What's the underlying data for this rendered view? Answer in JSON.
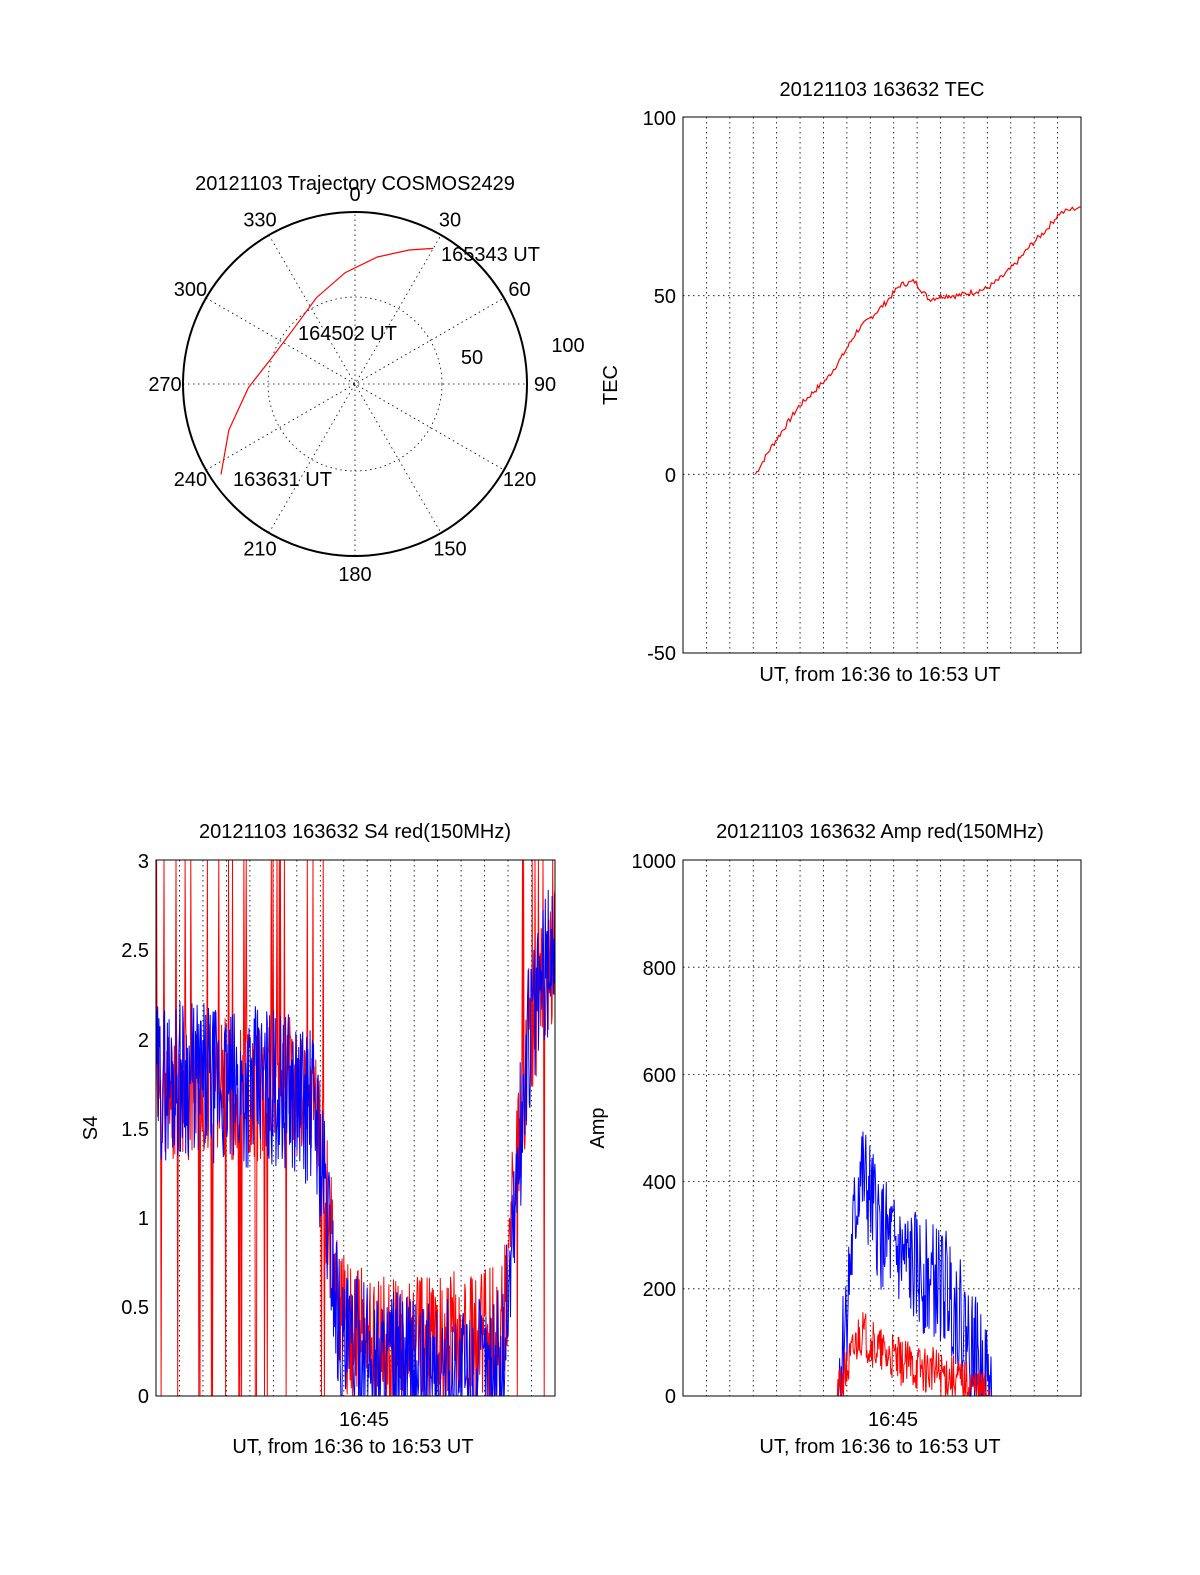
{
  "chart_data": [
    {
      "type": "polar",
      "title": "20121103 Trajectory COSMOS2429",
      "angle_labels": [
        "0",
        "30",
        "60",
        "90",
        "120",
        "150",
        "180",
        "210",
        "240",
        "270",
        "300",
        "330"
      ],
      "ring_labels": [
        "50",
        "100"
      ],
      "series": [
        {
          "color": "#ff0000",
          "points": [
            {
              "az": 236,
              "zen": 94
            },
            {
              "az": 250,
              "zen": 78
            },
            {
              "az": 268,
              "zen": 62
            },
            {
              "az": 290,
              "zen": 50
            },
            {
              "az": 312,
              "zen": 48
            },
            {
              "az": 336,
              "zen": 55
            },
            {
              "az": 355,
              "zen": 65
            },
            {
              "az": 10,
              "zen": 75
            },
            {
              "az": 22,
              "zen": 84
            },
            {
              "az": 30,
              "zen": 91
            }
          ]
        }
      ],
      "annotations": [
        {
          "text": "165343 UT",
          "az": 30,
          "zen": 91
        },
        {
          "text": "164502 UT",
          "az": 348,
          "zen": 26
        },
        {
          "text": "163631 UT",
          "az": 224,
          "zen": 76
        }
      ]
    },
    {
      "type": "line",
      "title": "20121103 163632 TEC",
      "xlabel": "UT, from 16:36 to 16:53 UT",
      "ylabel": "TEC",
      "ylim": [
        -50,
        100
      ],
      "yticks": [
        "100",
        "50",
        "0",
        "-50"
      ],
      "xlim": [
        16.5,
        17.05
      ],
      "series": [
        {
          "color": "#ff0000",
          "x": [
            16.6,
            16.62,
            16.64,
            16.66,
            16.68,
            16.7,
            16.72,
            16.74,
            16.76,
            16.78,
            16.8,
            16.82,
            16.84,
            16.86,
            16.88,
            16.9,
            16.92,
            16.94,
            16.96,
            16.98,
            17.0,
            17.02,
            17.05
          ],
          "y": [
            0,
            7,
            13,
            19,
            23,
            27,
            33,
            40,
            44,
            48,
            53,
            54,
            49,
            50,
            50,
            51,
            52,
            55,
            59,
            64,
            68,
            73,
            75
          ]
        }
      ]
    },
    {
      "type": "line",
      "title": "20121103 163632 S4 red(150MHz)",
      "xlabel": "UT, from 16:36 to 16:53 UT",
      "ylabel": "S4",
      "ylim": [
        0,
        3
      ],
      "yticks": [
        "3",
        "2.5",
        "2",
        "1.5",
        "1",
        "0.5",
        "0"
      ],
      "xticks": [
        "16:45"
      ],
      "series": [
        {
          "color": "#ff0000",
          "levels": [
            1.7,
            1.7,
            1.75,
            1.7,
            1.7,
            1.75,
            1.6,
            0.4,
            0.3,
            0.25,
            0.28,
            0.3,
            0.3,
            0.35,
            2.0,
            2.5
          ]
        },
        {
          "color": "#0000ff",
          "levels": [
            1.75,
            1.8,
            1.75,
            1.7,
            1.75,
            1.7,
            1.6,
            0.25,
            0.2,
            0.15,
            0.1,
            0.1,
            0.1,
            0.15,
            2.0,
            2.6
          ]
        }
      ]
    },
    {
      "type": "line",
      "title": "20121103 163632 Amp red(150MHz)",
      "xlabel": "UT, from 16:36 to 16:53 UT",
      "ylabel": "Amp",
      "ylim": [
        0,
        1000
      ],
      "yticks": [
        "1000",
        "800",
        "600",
        "400",
        "200",
        "0"
      ],
      "xticks": [
        "16:45"
      ],
      "series": [
        {
          "color": "#ff0000",
          "levels": [
            0,
            0,
            0,
            0,
            0,
            0,
            0,
            0,
            120,
            80,
            60,
            50,
            40,
            20,
            0,
            0,
            0,
            0,
            0
          ]
        },
        {
          "color": "#0000ff",
          "levels": [
            0,
            0,
            0,
            0,
            0,
            0,
            0,
            0,
            420,
            300,
            250,
            220,
            200,
            100,
            0,
            0,
            0,
            0,
            0
          ]
        }
      ]
    }
  ]
}
